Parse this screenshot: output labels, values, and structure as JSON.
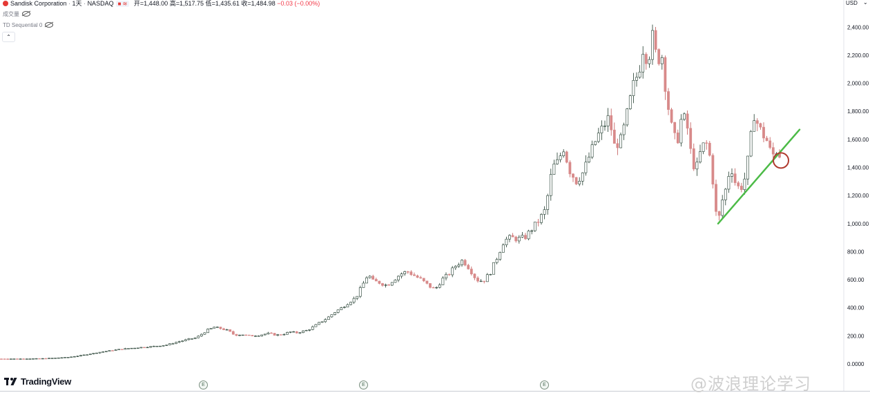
{
  "header": {
    "symbol_name": "Sandisk Corporation",
    "interval": "1天",
    "exchange": "NASDAQ",
    "open_label": "开",
    "open": "1,448.00",
    "high_label": "高",
    "high": "1,517.75",
    "low_label": "低",
    "low": "1,435.61",
    "close_label": "收",
    "close": "1,484.98",
    "change": "−0.03 (−0.00%)"
  },
  "indicators": {
    "volume_label": "成交量",
    "td_label": "TD Sequential 0"
  },
  "price_axis": {
    "currency": "USD",
    "ticks": [
      "2,400.00",
      "2,200.00",
      "2,000.00",
      "1,800.00",
      "1,600.00",
      "1,400.00",
      "1,200.00",
      "1,000.00",
      "800.00",
      "600.00",
      "400.00",
      "200.00",
      "0.0000"
    ]
  },
  "branding": {
    "logo_text": "TradingView",
    "watermark": "@波浪理论学习"
  },
  "earnings_marker": "E",
  "colors": {
    "up": "#ffffff",
    "up_border": "#1f3a2c",
    "down": "#d88a8a",
    "trendline": "#4cbb47",
    "circle": "#b03a2e",
    "grid_axis": "#e0e3eb"
  },
  "chart_data": {
    "type": "candlestick",
    "title": "Sandisk Corporation · 1天 · NASDAQ",
    "ylabel": "USD",
    "ylim": [
      0,
      2450
    ],
    "y_ticks": [
      0,
      200,
      400,
      600,
      800,
      1000,
      1200,
      1400,
      1600,
      1800,
      2000,
      2200,
      2400
    ],
    "grid": false,
    "last_candle": {
      "open": 1448.0,
      "high": 1517.75,
      "low": 1435.61,
      "close": 1484.98
    },
    "approx_close_path": [
      [
        0,
        36
      ],
      [
        30,
        36
      ],
      [
        60,
        38
      ],
      [
        80,
        42
      ],
      [
        100,
        48
      ],
      [
        120,
        62
      ],
      [
        140,
        80
      ],
      [
        160,
        95
      ],
      [
        180,
        108
      ],
      [
        200,
        116
      ],
      [
        220,
        124
      ],
      [
        240,
        134
      ],
      [
        256,
        155
      ],
      [
        270,
        172
      ],
      [
        285,
        188
      ],
      [
        300,
        240
      ],
      [
        310,
        262
      ],
      [
        320,
        252
      ],
      [
        330,
        238
      ],
      [
        340,
        205
      ],
      [
        350,
        210
      ],
      [
        360,
        200
      ],
      [
        375,
        205
      ],
      [
        390,
        218
      ],
      [
        400,
        205
      ],
      [
        410,
        212
      ],
      [
        420,
        228
      ],
      [
        430,
        222
      ],
      [
        445,
        240
      ],
      [
        455,
        268
      ],
      [
        465,
        300
      ],
      [
        475,
        330
      ],
      [
        485,
        370
      ],
      [
        495,
        400
      ],
      [
        505,
        440
      ],
      [
        515,
        470
      ],
      [
        525,
        560
      ],
      [
        533,
        640
      ],
      [
        540,
        590
      ],
      [
        550,
        580
      ],
      [
        560,
        560
      ],
      [
        570,
        600
      ],
      [
        580,
        640
      ],
      [
        590,
        660
      ],
      [
        600,
        630
      ],
      [
        610,
        600
      ],
      [
        620,
        560
      ],
      [
        630,
        530
      ],
      [
        640,
        600
      ],
      [
        650,
        640
      ],
      [
        660,
        700
      ],
      [
        670,
        740
      ],
      [
        680,
        680
      ],
      [
        690,
        600
      ],
      [
        700,
        590
      ],
      [
        710,
        650
      ],
      [
        720,
        760
      ],
      [
        730,
        880
      ],
      [
        740,
        900
      ],
      [
        750,
        890
      ],
      [
        760,
        900
      ],
      [
        770,
        960
      ],
      [
        780,
        1020
      ],
      [
        790,
        1100
      ],
      [
        800,
        1400
      ],
      [
        810,
        1450
      ],
      [
        815,
        1560
      ],
      [
        825,
        1380
      ],
      [
        835,
        1300
      ],
      [
        845,
        1370
      ],
      [
        855,
        1500
      ],
      [
        865,
        1620
      ],
      [
        875,
        1700
      ],
      [
        882,
        1760
      ],
      [
        890,
        1550
      ],
      [
        900,
        1600
      ],
      [
        910,
        1820
      ],
      [
        918,
        2000
      ],
      [
        925,
        2080
      ],
      [
        932,
        2270
      ],
      [
        938,
        2150
      ],
      [
        945,
        2330
      ],
      [
        952,
        2150
      ],
      [
        958,
        2230
      ],
      [
        965,
        1920
      ],
      [
        972,
        1700
      ],
      [
        980,
        1560
      ],
      [
        988,
        1780
      ],
      [
        995,
        1700
      ],
      [
        1002,
        1450
      ],
      [
        1008,
        1380
      ],
      [
        1015,
        1520
      ],
      [
        1022,
        1590
      ],
      [
        1030,
        1440
      ],
      [
        1036,
        1100
      ],
      [
        1040,
        1000
      ],
      [
        1045,
        1150
      ],
      [
        1052,
        1260
      ],
      [
        1058,
        1420
      ],
      [
        1065,
        1290
      ],
      [
        1072,
        1240
      ],
      [
        1080,
        1340
      ],
      [
        1086,
        1560
      ],
      [
        1092,
        1780
      ],
      [
        1098,
        1700
      ],
      [
        1104,
        1640
      ],
      [
        1110,
        1600
      ],
      [
        1118,
        1480
      ],
      [
        1124,
        1520
      ],
      [
        1130,
        1484.98
      ]
    ],
    "trendline": {
      "from": [
        1040,
        1000
      ],
      "to": [
        1158,
        1670
      ]
    },
    "highlight_circle": {
      "x": 1131,
      "y": 1450
    }
  }
}
